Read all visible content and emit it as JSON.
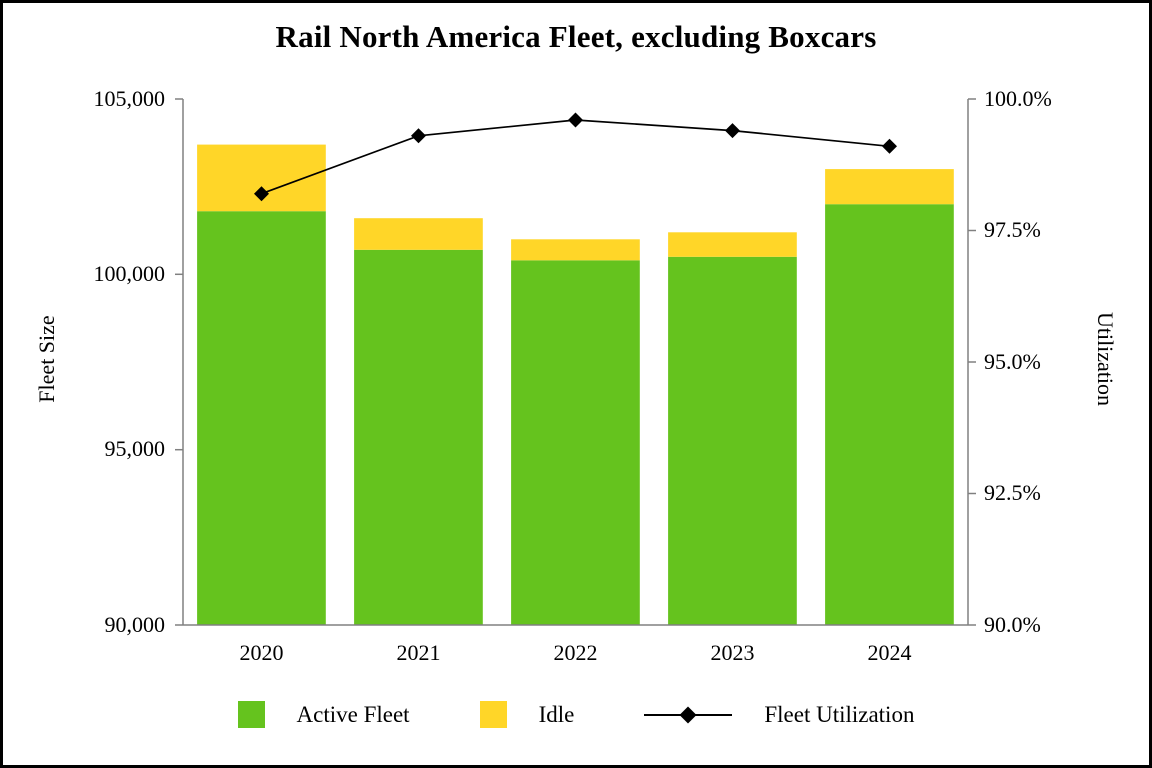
{
  "title": "Rail North America Fleet, excluding Boxcars",
  "left_axis": {
    "title": "Fleet Size",
    "ticks": [
      "105,000",
      "100,000",
      "95,000",
      "90,000"
    ]
  },
  "right_axis": {
    "title": "Utilization",
    "ticks": [
      "100.0%",
      "97.5%",
      "95.0%",
      "92.5%",
      "90.0%"
    ]
  },
  "legend": {
    "items": [
      {
        "label": "Active Fleet",
        "swatch": "active"
      },
      {
        "label": "Idle",
        "swatch": "idle"
      },
      {
        "label": "Fleet Utilization",
        "swatch": "line-diamond"
      }
    ]
  },
  "colors": {
    "active_green": "#65C31E",
    "idle_yellow": "#FFD628",
    "utilization_line": "#000000",
    "axis_gray": "#808080"
  },
  "chart_data": {
    "type": "bar",
    "subtype": "stacked-bar-with-line",
    "title": "Rail North America Fleet, excluding Boxcars",
    "categories": [
      "2020",
      "2021",
      "2022",
      "2023",
      "2024"
    ],
    "series": [
      {
        "name": "Active Fleet",
        "type": "bar",
        "stack": "fleet",
        "axis": "left",
        "values": [
          101800,
          100700,
          100400,
          100500,
          102000
        ]
      },
      {
        "name": "Idle",
        "type": "bar",
        "stack": "fleet",
        "axis": "left",
        "values": [
          1900,
          900,
          600,
          700,
          1000
        ]
      },
      {
        "name": "Fleet Utilization",
        "type": "line",
        "axis": "right",
        "marker": "diamond",
        "values": [
          98.2,
          99.3,
          99.6,
          99.4,
          99.1
        ]
      }
    ],
    "totals": [
      103700,
      101600,
      101000,
      101200,
      103000
    ],
    "ylabel_left": "Fleet Size",
    "ylabel_right": "Utilization",
    "left_ylim": [
      90000,
      105000
    ],
    "right_ylim": [
      90.0,
      100.0
    ],
    "left_tick_step": 5000,
    "right_tick_step": 2.5,
    "grid": "off",
    "legend_position": "bottom"
  }
}
